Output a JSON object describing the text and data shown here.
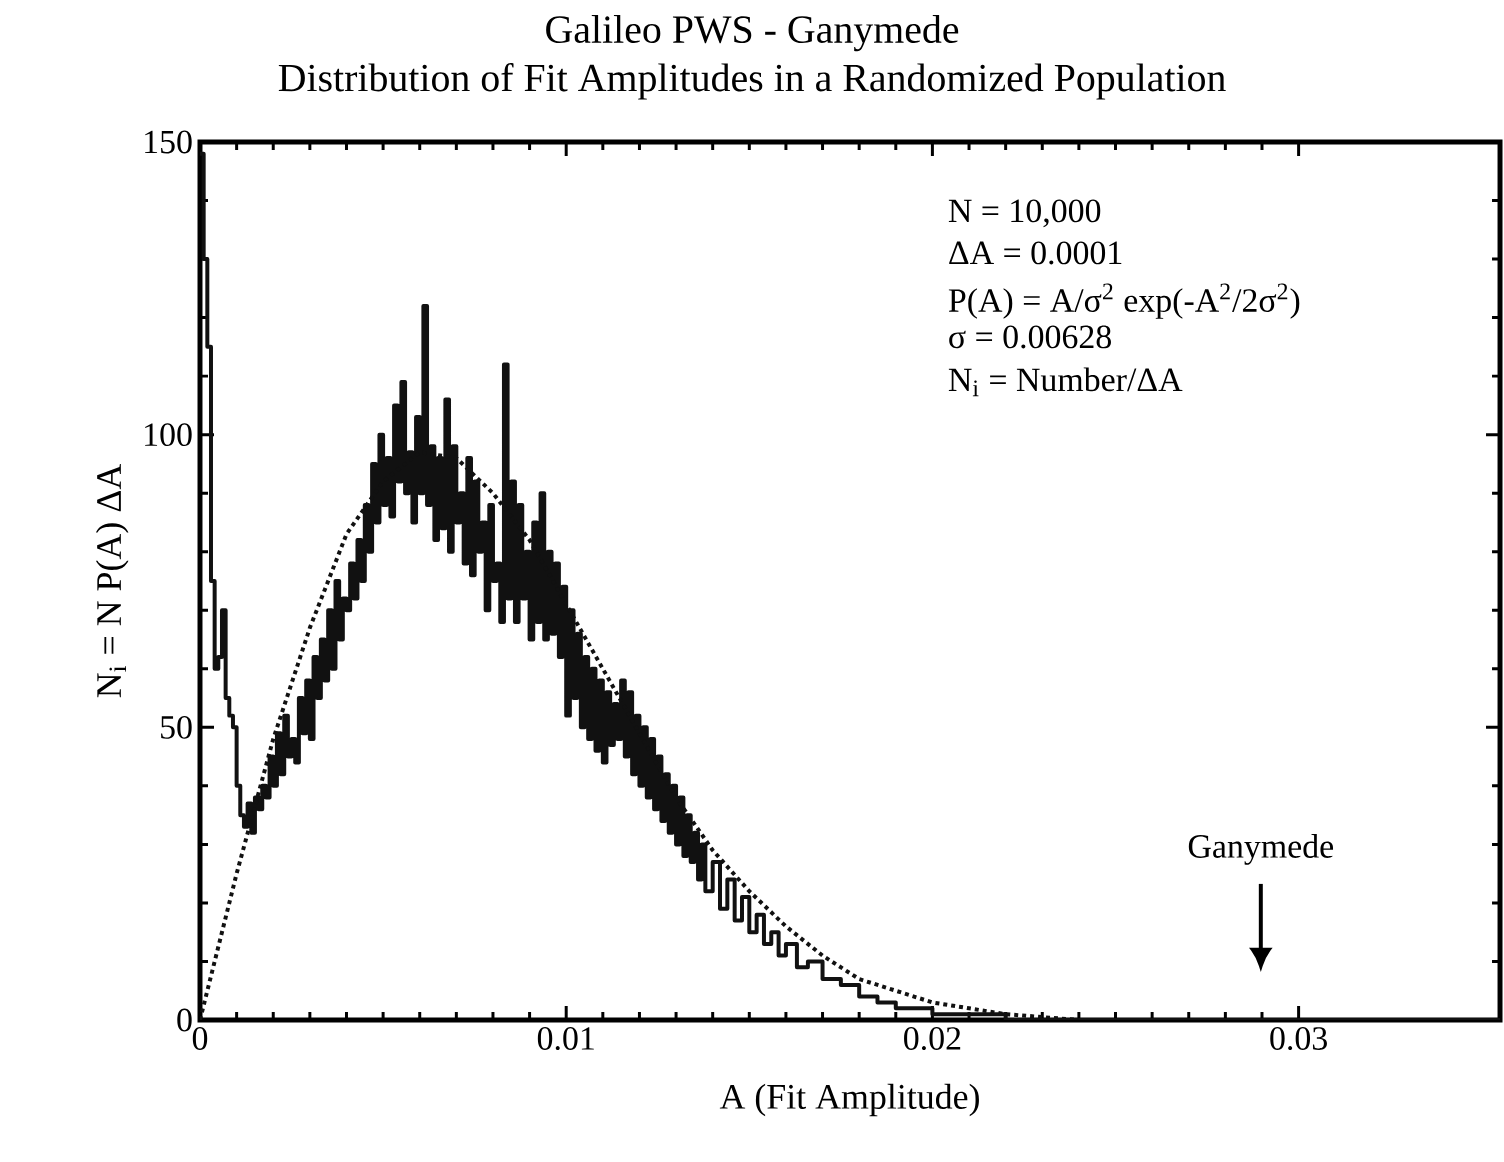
{
  "chart_data": {
    "type": "step",
    "title": "Galileo PWS - Ganymede",
    "subtitle": "Distribution of Fit Amplitudes in a Randomized Population",
    "xlabel": "A (Fit Amplitude)",
    "ylabel": "N$_{i}$ = N P(A) ΔA",
    "xlim": [
      0,
      0.0355
    ],
    "ylim": [
      0,
      150
    ],
    "xticks": [
      0,
      0.01,
      0.02,
      0.03
    ],
    "yticks": [
      0,
      50,
      100,
      150
    ],
    "annotations": [
      "N = 10,000",
      "ΔA = 0.0001",
      "P(A) = A/σ$^{2}$ exp(-A$^{2}$/2σ$^{2}$)",
      "σ = 0.00628",
      "N$_{i}$ = Number/ΔA",
      "Ganymede"
    ],
    "series": [
      {
        "color": "#111111",
        "x": [
          0,
          0.0001,
          0.0002,
          0.0003,
          0.0004,
          0.0005,
          0.0006,
          0.0007,
          0.0008,
          0.0009,
          0.001,
          0.0011,
          0.0012,
          0.0013,
          0.0014,
          0.0015,
          0.0016,
          0.0017,
          0.0018,
          0.0019,
          0.002,
          0.0021,
          0.0022,
          0.0023,
          0.0024,
          0.0025,
          0.0026,
          0.0027,
          0.0028,
          0.0029,
          0.003,
          0.0031,
          0.0032,
          0.0033,
          0.0034,
          0.0035,
          0.0036,
          0.0037,
          0.0038,
          0.0039,
          0.004,
          0.0041,
          0.0042,
          0.0043,
          0.0044,
          0.0045,
          0.0046,
          0.0047,
          0.0048,
          0.0049,
          0.005,
          0.0051,
          0.0052,
          0.0053,
          0.0054,
          0.0055,
          0.0056,
          0.0057,
          0.0058,
          0.0059,
          0.006,
          0.0061,
          0.0062,
          0.0063,
          0.0064,
          0.0065,
          0.0066,
          0.0067,
          0.0068,
          0.0069,
          0.007,
          0.0071,
          0.0072,
          0.0073,
          0.0074,
          0.0075,
          0.0076,
          0.0077,
          0.0078,
          0.0079,
          0.008,
          0.0081,
          0.0082,
          0.0083,
          0.0084,
          0.0085,
          0.0086,
          0.0087,
          0.0088,
          0.0089,
          0.009,
          0.0091,
          0.0092,
          0.0093,
          0.0094,
          0.0095,
          0.0096,
          0.0097,
          0.0098,
          0.0099,
          0.01,
          0.0101,
          0.0102,
          0.0103,
          0.0104,
          0.0105,
          0.0106,
          0.0107,
          0.0108,
          0.0109,
          0.011,
          0.0111,
          0.0112,
          0.0113,
          0.0114,
          0.0115,
          0.0116,
          0.0117,
          0.0118,
          0.0119,
          0.012,
          0.0121,
          0.0122,
          0.0123,
          0.0124,
          0.0125,
          0.0126,
          0.0127,
          0.0128,
          0.0129,
          0.013,
          0.0131,
          0.0132,
          0.0133,
          0.0134,
          0.0135,
          0.0136,
          0.0137,
          0.0138,
          0.014,
          0.0142,
          0.0144,
          0.0146,
          0.0148,
          0.015,
          0.0152,
          0.0154,
          0.0156,
          0.0158,
          0.016,
          0.0163,
          0.0166,
          0.017,
          0.0175,
          0.018,
          0.0185,
          0.019,
          0.02,
          0.021,
          0.022,
          0.0355
        ],
        "values": [
          148,
          130,
          115,
          75,
          60,
          62,
          70,
          55,
          52,
          50,
          40,
          35,
          33,
          37,
          32,
          38,
          36,
          40,
          38,
          45,
          40,
          49,
          42,
          52,
          45,
          48,
          44,
          55,
          49,
          58,
          48,
          62,
          55,
          65,
          58,
          70,
          60,
          75,
          65,
          72,
          70,
          78,
          72,
          82,
          75,
          88,
          80,
          95,
          85,
          100,
          88,
          96,
          86,
          105,
          92,
          109,
          90,
          97,
          85,
          103,
          90,
          122,
          88,
          98,
          82,
          96,
          84,
          106,
          80,
          98,
          85,
          90,
          78,
          96,
          76,
          92,
          80,
          85,
          70,
          88,
          75,
          78,
          68,
          112,
          72,
          92,
          68,
          88,
          72,
          80,
          65,
          85,
          68,
          90,
          65,
          80,
          66,
          78,
          62,
          74,
          52,
          70,
          55,
          66,
          50,
          62,
          48,
          60,
          46,
          58,
          44,
          56,
          47,
          54,
          48,
          58,
          45,
          56,
          42,
          52,
          40,
          50,
          38,
          48,
          36,
          45,
          34,
          42,
          32,
          40,
          30,
          38,
          28,
          35,
          27,
          32,
          24,
          30,
          22,
          27,
          19,
          24,
          17,
          21,
          15,
          18,
          13,
          15,
          11,
          13,
          9,
          10,
          7,
          6,
          4,
          3,
          2,
          1,
          1,
          0,
          0
        ]
      },
      {
        "type": "line",
        "line_style": "dotted",
        "color": "#111111",
        "x": [
          0,
          0.001,
          0.002,
          0.003,
          0.004,
          0.005,
          0.006,
          0.007,
          0.008,
          0.009,
          0.01,
          0.011,
          0.012,
          0.013,
          0.014,
          0.015,
          0.016,
          0.017,
          0.018,
          0.019,
          0.02,
          0.021,
          0.022,
          0.024
        ],
        "values": [
          0,
          25,
          48,
          67,
          83,
          92,
          97,
          96,
          90,
          82,
          71,
          60,
          49,
          38,
          29,
          22,
          16,
          11,
          7,
          5,
          3,
          2,
          1,
          0
        ]
      }
    ]
  }
}
